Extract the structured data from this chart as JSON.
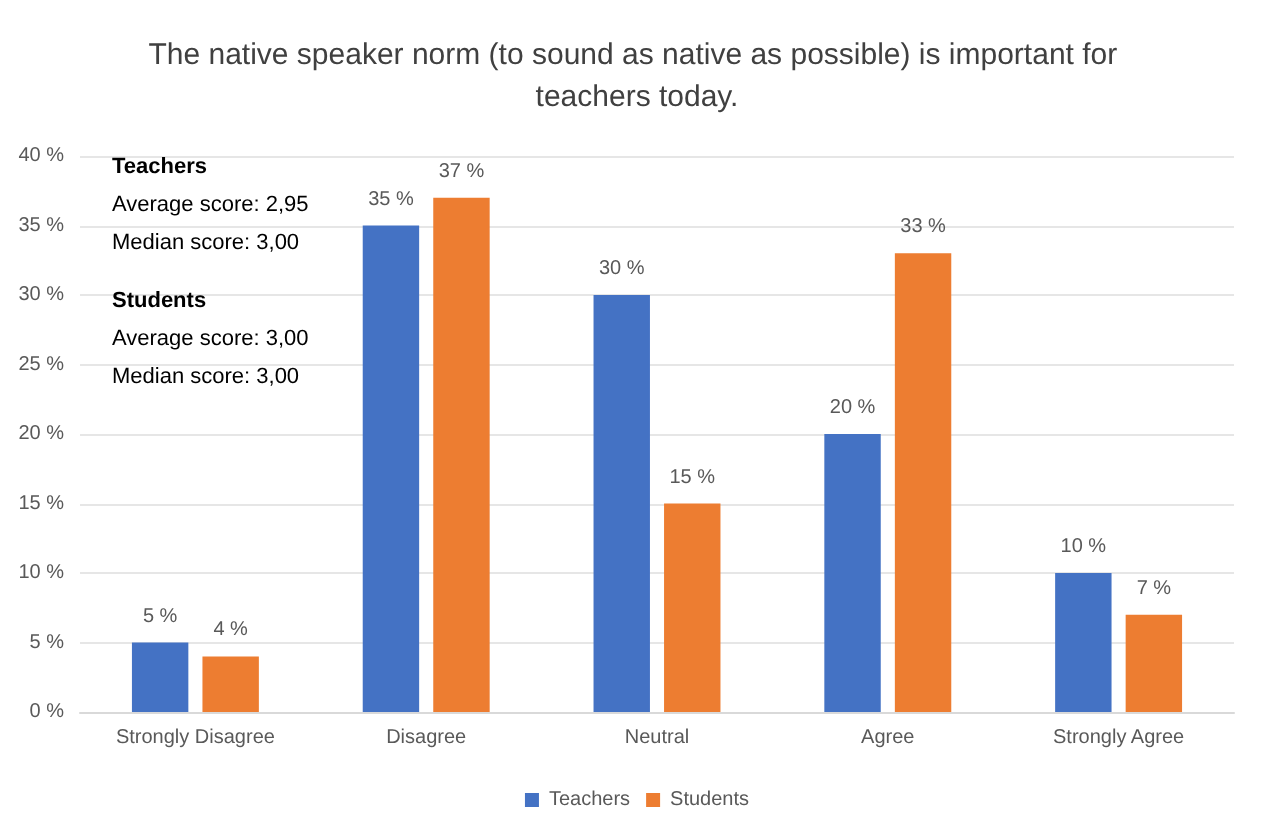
{
  "chart_data": {
    "type": "bar",
    "title": "The native speaker norm (to sound as native as possible) is important for teachers today.",
    "categories": [
      "Strongly Disagree",
      "Disagree",
      "Neutral",
      "Agree",
      "Strongly Agree"
    ],
    "series": [
      {
        "name": "Teachers",
        "color": "#4472c4",
        "values": [
          5,
          35,
          30,
          20,
          10
        ],
        "value_labels": [
          "5 %",
          "35 %",
          "30 %",
          "20 %",
          "10 %"
        ]
      },
      {
        "name": "Students",
        "color": "#ed7d31",
        "values": [
          4,
          37,
          15,
          33,
          7
        ],
        "value_labels": [
          "4 %",
          "37 %",
          "15 %",
          "33 %",
          "7 %"
        ]
      }
    ],
    "ylim": [
      0,
      40
    ],
    "yticks": [
      {
        "value": 0,
        "label": "0 %"
      },
      {
        "value": 5,
        "label": "5 %"
      },
      {
        "value": 10,
        "label": "10 %"
      },
      {
        "value": 15,
        "label": "15 %"
      },
      {
        "value": 20,
        "label": "20 %"
      },
      {
        "value": 25,
        "label": "25 %"
      },
      {
        "value": 30,
        "label": "30 %"
      },
      {
        "value": 35,
        "label": "35 %"
      },
      {
        "value": 40,
        "label": "40 %"
      }
    ],
    "grid": "y",
    "legend": "bottom",
    "annotations": [
      "Teachers",
      "Average score: 2,95",
      "Median score: 3,00",
      "Students",
      "Average score: 3,00",
      "Median score: 3,00"
    ]
  }
}
